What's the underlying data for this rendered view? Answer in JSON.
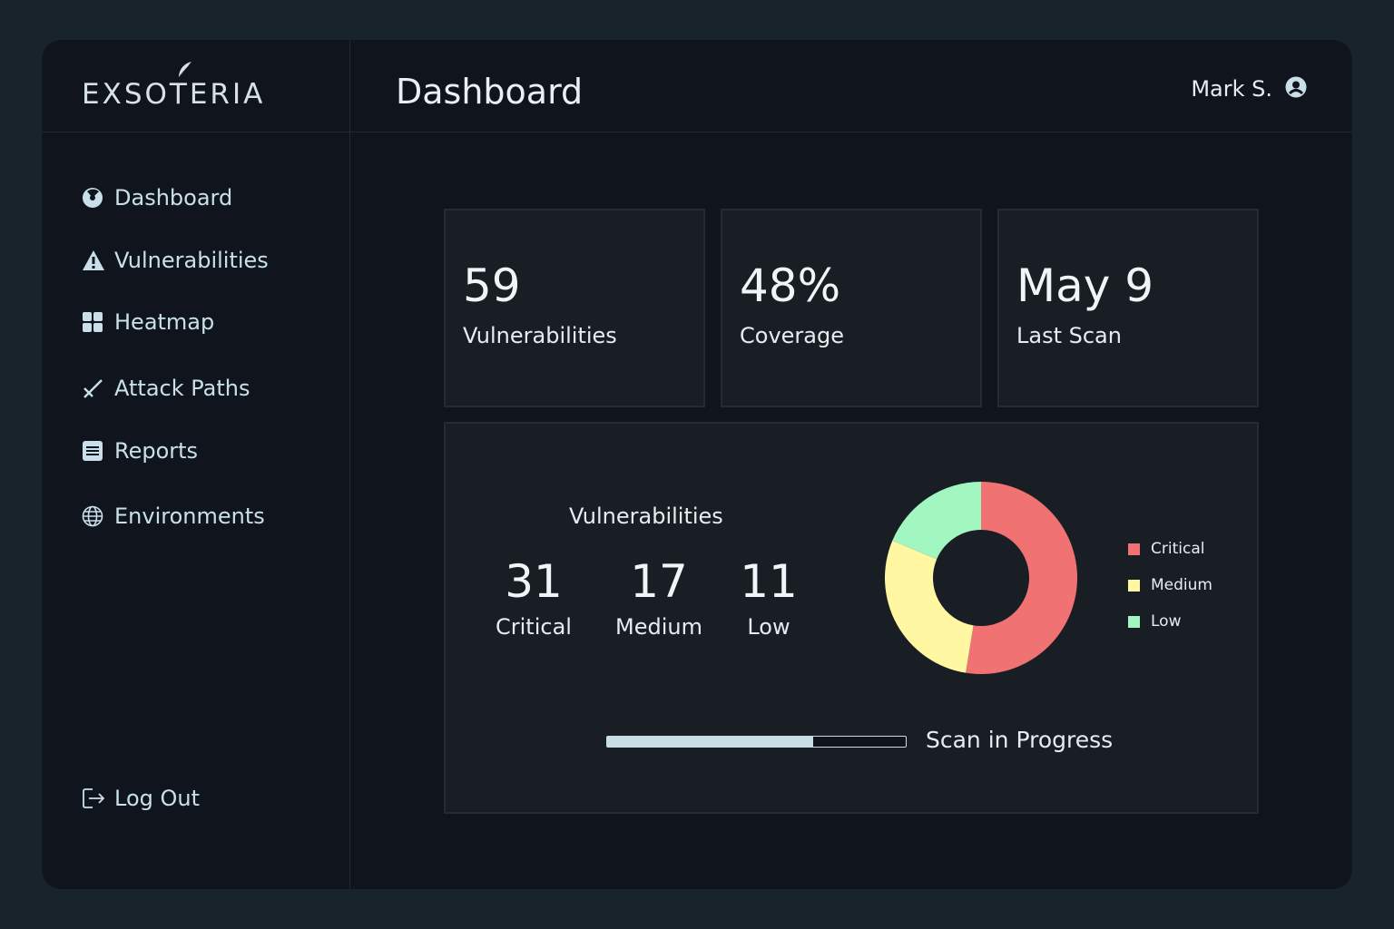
{
  "brand": {
    "name": "EXSOTERIA"
  },
  "header": {
    "title": "Dashboard",
    "user_name": "Mark S."
  },
  "sidebar": {
    "items": [
      {
        "label": "Dashboard",
        "icon": "dashboard-icon"
      },
      {
        "label": "Vulnerabilities",
        "icon": "warning-icon"
      },
      {
        "label": "Heatmap",
        "icon": "grid-icon"
      },
      {
        "label": "Attack Paths",
        "icon": "attack-path-icon"
      },
      {
        "label": "Reports",
        "icon": "document-icon"
      },
      {
        "label": "Environments",
        "icon": "globe-icon"
      }
    ],
    "logout_label": "Log Out"
  },
  "stats": [
    {
      "value": "59",
      "label": "Vulnerabilities"
    },
    {
      "value": "48%",
      "label": "Coverage"
    },
    {
      "value": "May 9",
      "label": "Last Scan"
    }
  ],
  "vulnerabilities": {
    "title": "Vulnerabilities",
    "counts": [
      {
        "value": "31",
        "label": "Critical"
      },
      {
        "value": "17",
        "label": "Medium"
      },
      {
        "value": "11",
        "label": "Low"
      }
    ]
  },
  "chart_data": {
    "type": "pie",
    "title": "",
    "categories": [
      "Critical",
      "Medium",
      "Low"
    ],
    "values": [
      31,
      17,
      11
    ],
    "colors": [
      "#f07272",
      "#fff7a2",
      "#a2f7c0"
    ],
    "legend": "right"
  },
  "scan": {
    "label": "Scan in Progress",
    "progress_percent": 69
  },
  "colors": {
    "background": "#18232b",
    "panel": "#10151d",
    "card": "#191e25",
    "accent": "#c8dde6"
  }
}
